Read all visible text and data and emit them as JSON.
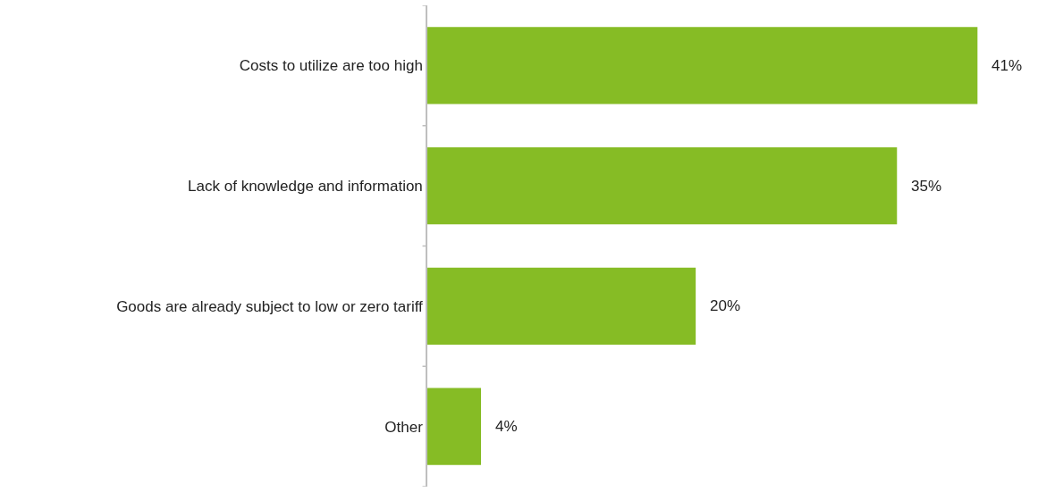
{
  "chart_data": {
    "type": "bar",
    "orientation": "horizontal",
    "categories": [
      "Costs to utilize are too high",
      "Lack of knowledge and information",
      "Goods are already subject to low or zero tariff",
      "Other"
    ],
    "values": [
      41,
      35,
      20,
      4
    ],
    "value_labels": [
      "41%",
      "35%",
      "20%",
      "4%"
    ],
    "color": "#86bc25",
    "tick_labels": "y"
  }
}
